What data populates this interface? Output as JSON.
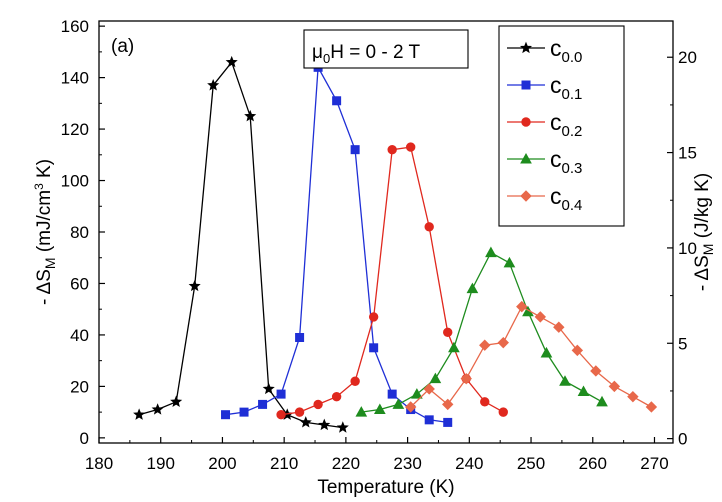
{
  "chart_data": {
    "type": "line",
    "panel_label": "(a)",
    "annotation": {
      "main": "μ",
      "sub": "0",
      "rest": "H = 0 - 2 T"
    },
    "xlabel": "Temperature (K)",
    "ylabel": {
      "pre": "- ΔS",
      "sub": "M",
      "mid": " (mJ/cm",
      "sup": "3",
      "post": " K)"
    },
    "ylabel_right": {
      "pre": "- ΔS",
      "sub": "M",
      "post": " (J/kg K)"
    },
    "xlim": [
      180,
      273
    ],
    "ylim": [
      -2,
      162
    ],
    "y2lim": [
      -0.23,
      21.9
    ],
    "xticks": [
      180,
      190,
      200,
      210,
      220,
      230,
      240,
      250,
      260,
      270
    ],
    "yticks": [
      0,
      20,
      40,
      60,
      80,
      100,
      120,
      140,
      160
    ],
    "y2ticks": [
      0,
      5,
      10,
      15,
      20
    ],
    "grid": false,
    "legend_position": "top-right",
    "series": [
      {
        "name": "c",
        "sub": "0.0",
        "color": "#000000",
        "marker": "star",
        "x": [
          186.5,
          189.5,
          192.5,
          195.5,
          198.5,
          201.5,
          204.5,
          207.5,
          210.5,
          213.5,
          216.5,
          219.5
        ],
        "y": [
          9,
          11,
          14,
          59,
          137,
          146,
          125,
          19,
          9,
          6,
          5,
          4
        ]
      },
      {
        "name": "c",
        "sub": "0.1",
        "color": "#1f2fd6",
        "marker": "square",
        "x": [
          200.5,
          203.5,
          206.5,
          209.5,
          212.5,
          215.5,
          218.5,
          221.5,
          224.5,
          227.5,
          230.5,
          233.5,
          236.5
        ],
        "y": [
          9,
          10,
          13,
          17,
          39,
          144,
          131,
          112,
          35,
          17,
          11,
          7,
          6
        ]
      },
      {
        "name": "c",
        "sub": "0.2",
        "color": "#e0281e",
        "marker": "circle",
        "x": [
          209.5,
          212.5,
          215.5,
          218.5,
          221.5,
          224.5,
          227.5,
          230.5,
          233.5,
          236.5,
          239.5,
          242.5,
          245.5
        ],
        "y": [
          9,
          10,
          13,
          16,
          22,
          47,
          112,
          113,
          82,
          41,
          23,
          14,
          10
        ]
      },
      {
        "name": "c",
        "sub": "0.3",
        "color": "#1e8c1e",
        "marker": "triangle",
        "x": [
          222.5,
          225.5,
          228.5,
          231.5,
          234.5,
          237.5,
          240.5,
          243.5,
          246.5,
          249.5,
          252.5,
          255.5,
          258.5,
          261.5
        ],
        "y": [
          10,
          11,
          13,
          17,
          23,
          35,
          58,
          72,
          68,
          49,
          33,
          22,
          18,
          14
        ]
      },
      {
        "name": "c",
        "sub": "0.4",
        "color": "#e8684a",
        "marker": "diamond",
        "x": [
          230.5,
          233.5,
          236.5,
          239.5,
          242.5,
          245.5,
          248.5,
          251.5,
          254.5,
          257.5,
          260.5,
          263.5,
          266.5,
          269.5
        ],
        "y": [
          12,
          19,
          13,
          23,
          36,
          37,
          51,
          47,
          43,
          34,
          26,
          20,
          16,
          12
        ]
      }
    ]
  }
}
